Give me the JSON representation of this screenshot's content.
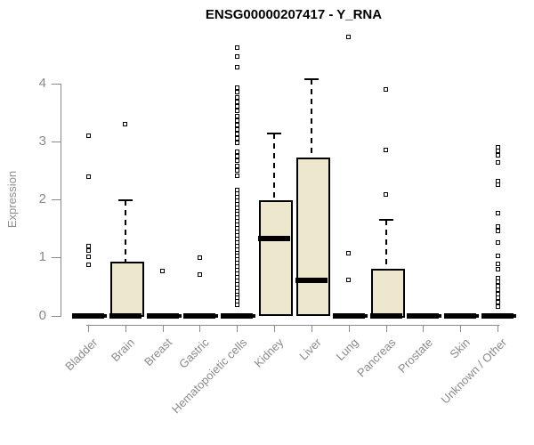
{
  "title": "ENSG00000207417 - Y_RNA",
  "y_axis": {
    "label": "Expression",
    "tick_labels": [
      "0",
      "1",
      "2",
      "3",
      "4"
    ]
  },
  "chart_data": {
    "type": "boxplot",
    "title": "ENSG00000207417 - Y_RNA",
    "xlabel": "",
    "ylabel": "Expression",
    "ylim": [
      0,
      4.9
    ],
    "yticks": [
      0,
      1,
      2,
      3,
      4
    ],
    "grid": false,
    "x_label_rotation": 45,
    "categories": [
      "Bladder",
      "Brain",
      "Breast",
      "Gastric",
      "Hematopoietic cells",
      "Kidney",
      "Liver",
      "Lung",
      "Pancreas",
      "Prostate",
      "Skin",
      "Unknown / Other"
    ],
    "groups": [
      {
        "label": "Bladder",
        "q1": 0,
        "median": 0,
        "q3": 0,
        "whisker_low": 0,
        "whisker_high": 0,
        "outliers": [
          3.1,
          2.39,
          1.19,
          1.12,
          1.01,
          0.87
        ]
      },
      {
        "label": "Brain",
        "q1": 0,
        "median": 0,
        "q3": 0.89,
        "whisker_low": 0,
        "whisker_high": 1.99,
        "outliers": [
          3.3
        ]
      },
      {
        "label": "Breast",
        "q1": 0,
        "median": 0,
        "q3": 0,
        "whisker_low": 0,
        "whisker_high": 0,
        "outliers": [
          0.77
        ]
      },
      {
        "label": "Gastric",
        "q1": 0,
        "median": 0,
        "q3": 0,
        "whisker_low": 0,
        "whisker_high": 0,
        "outliers": [
          1.0,
          0.7
        ]
      },
      {
        "label": "Hematopoietic cells",
        "q1": 0,
        "median": 0,
        "q3": 0,
        "whisker_low": 0,
        "whisker_high": 0,
        "outliers": [
          4.61,
          4.46,
          4.28,
          3.92,
          3.84,
          3.76,
          3.68,
          3.6,
          3.52,
          3.44,
          3.36,
          3.28,
          3.2,
          3.12,
          3.05,
          2.98,
          2.82,
          2.74,
          2.66,
          2.58,
          2.5,
          2.41,
          2.16,
          2.1,
          2.04,
          1.98,
          1.92,
          1.86,
          1.8,
          1.74,
          1.68,
          1.62,
          1.56,
          1.5,
          1.44,
          1.38,
          1.32,
          1.26,
          1.2,
          1.14,
          1.08,
          1.02,
          0.96,
          0.9,
          0.84,
          0.78,
          0.72,
          0.66,
          0.6,
          0.54,
          0.48,
          0.42,
          0.36,
          0.3,
          0.24,
          0.18
        ]
      },
      {
        "label": "Kidney",
        "q1": 0.03,
        "median": 1.33,
        "q3": 1.96,
        "whisker_low": 0.03,
        "whisker_high": 3.13,
        "outliers": []
      },
      {
        "label": "Liver",
        "q1": 0.02,
        "median": 0.6,
        "q3": 2.69,
        "whisker_low": 0.02,
        "whisker_high": 4.07,
        "outliers": []
      },
      {
        "label": "Lung",
        "q1": 0,
        "median": 0,
        "q3": 0,
        "whisker_low": 0,
        "whisker_high": 0,
        "outliers": [
          4.79,
          1.08,
          0.61
        ]
      },
      {
        "label": "Pancreas",
        "q1": 0,
        "median": 0,
        "q3": 0.78,
        "whisker_low": 0,
        "whisker_high": 1.64,
        "outliers": [
          3.9,
          2.85,
          2.08
        ]
      },
      {
        "label": "Prostate",
        "q1": 0,
        "median": 0,
        "q3": 0,
        "whisker_low": 0,
        "whisker_high": 0,
        "outliers": []
      },
      {
        "label": "Skin",
        "q1": 0,
        "median": 0,
        "q3": 0,
        "whisker_low": 0,
        "whisker_high": 0,
        "outliers": []
      },
      {
        "label": "Unknown / Other",
        "q1": 0,
        "median": 0,
        "q3": 0,
        "whisker_low": 0,
        "whisker_high": 0,
        "outliers": [
          2.9,
          2.84,
          2.76,
          2.64,
          2.32,
          2.25,
          1.77,
          1.54,
          1.45,
          1.26,
          1.03,
          0.89,
          0.79,
          0.65,
          0.58,
          0.51,
          0.44,
          0.37,
          0.3,
          0.23,
          0.16
        ]
      }
    ],
    "style": {
      "box_fill": "#EDE8CD",
      "box_border": "#000000",
      "axis_color": "#8A8A8A",
      "median_color": "#000000"
    }
  }
}
